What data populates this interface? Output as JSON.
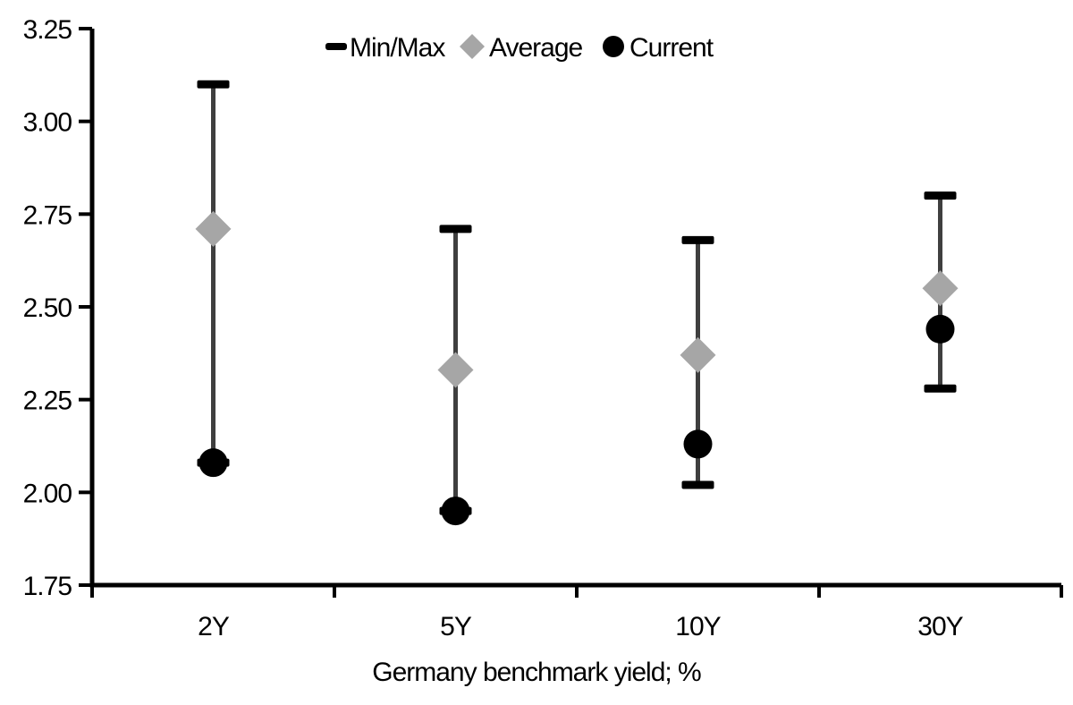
{
  "legend": {
    "items": [
      {
        "label": "Min/Max",
        "marker": "dash",
        "color": "#000000"
      },
      {
        "label": "Average",
        "marker": "diamond",
        "color": "#a6a6a6"
      },
      {
        "label": "Current",
        "marker": "circle",
        "color": "#000000"
      }
    ]
  },
  "chart_data": {
    "type": "scatter",
    "subtype": "min-max-range-with-markers",
    "categories": [
      "2Y",
      "5Y",
      "10Y",
      "30Y"
    ],
    "series": [
      {
        "name": "Min/Max",
        "marker": "dash",
        "color": "#000000",
        "max": [
          3.1,
          2.71,
          2.68,
          2.8
        ],
        "min": [
          2.08,
          1.95,
          2.02,
          2.28
        ]
      },
      {
        "name": "Average",
        "marker": "diamond",
        "color": "#a6a6a6",
        "values": [
          2.71,
          2.33,
          2.37,
          2.55
        ]
      },
      {
        "name": "Current",
        "marker": "circle",
        "color": "#000000",
        "values": [
          2.08,
          1.95,
          2.13,
          2.44
        ]
      }
    ],
    "xlabel": "Germany benchmark yield; %",
    "ylabel": "",
    "ylim": [
      1.75,
      3.25
    ],
    "ytick_labels": [
      "3.25",
      "3.00",
      "2.75",
      "2.50",
      "2.25",
      "2.00",
      "1.75"
    ],
    "legend_position": "top-center",
    "grid": false,
    "axis_color": "#000000",
    "errorbar_line_color": "#3f3f3f"
  }
}
